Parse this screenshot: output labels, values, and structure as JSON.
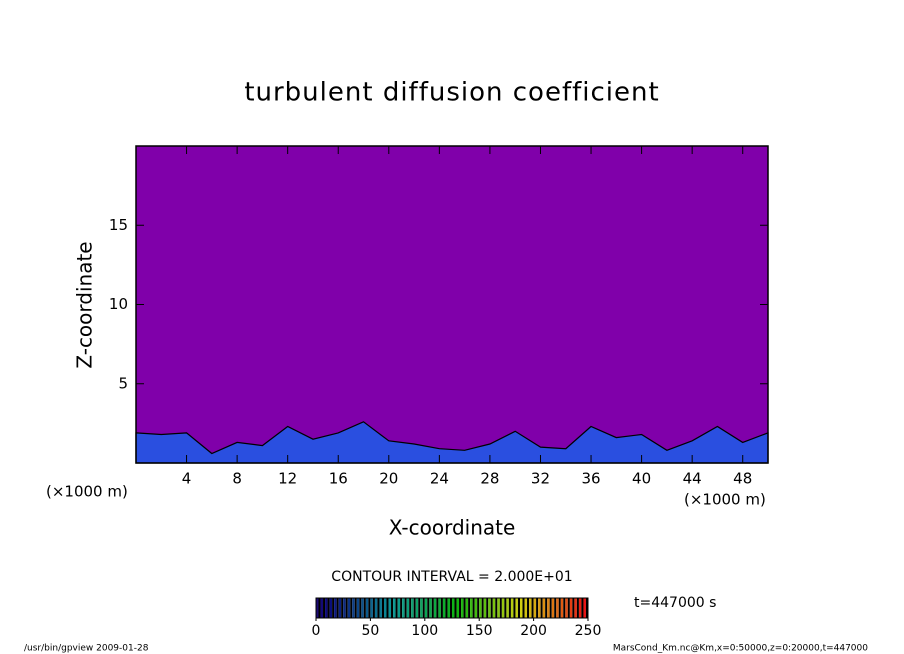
{
  "chart_data": {
    "type": "contour",
    "title": "turbulent diffusion coefficient",
    "x_label": "X-coordinate",
    "y_label": "Z-coordinate",
    "x_unit": "(×1000 m)",
    "xlim": [
      0,
      50
    ],
    "xticks": [
      4,
      8,
      12,
      16,
      20,
      24,
      28,
      32,
      36,
      40,
      44,
      48
    ],
    "ylim": [
      0,
      20
    ],
    "yticks": [
      5,
      10,
      15
    ],
    "background_color": "#8000aa",
    "layer_color": "#2a4fe0",
    "x": [
      0,
      2,
      4,
      6,
      8,
      10,
      12,
      14,
      16,
      18,
      20,
      22,
      24,
      26,
      28,
      30,
      32,
      34,
      36,
      38,
      40,
      42,
      44,
      46,
      48,
      50
    ],
    "values": [
      1.9,
      1.8,
      1.9,
      0.6,
      1.3,
      1.1,
      2.3,
      1.5,
      1.9,
      2.6,
      1.4,
      1.2,
      0.9,
      0.8,
      1.2,
      2.0,
      1.0,
      0.9,
      2.3,
      1.6,
      1.8,
      0.8,
      1.4,
      2.3,
      1.3,
      1.9
    ],
    "contour_interval_text": "CONTOUR INTERVAL = 2.000E+01",
    "colorbar": {
      "range": [
        0,
        250
      ],
      "ticks": [
        0,
        50,
        100,
        150,
        200,
        250
      ]
    },
    "time_label": "t=447000 s",
    "footer_left": "/usr/bin/gpview  2009-01-28",
    "footer_right": "MarsCond_Km.nc@Km,x=0:50000,z=0:20000,t=447000"
  }
}
